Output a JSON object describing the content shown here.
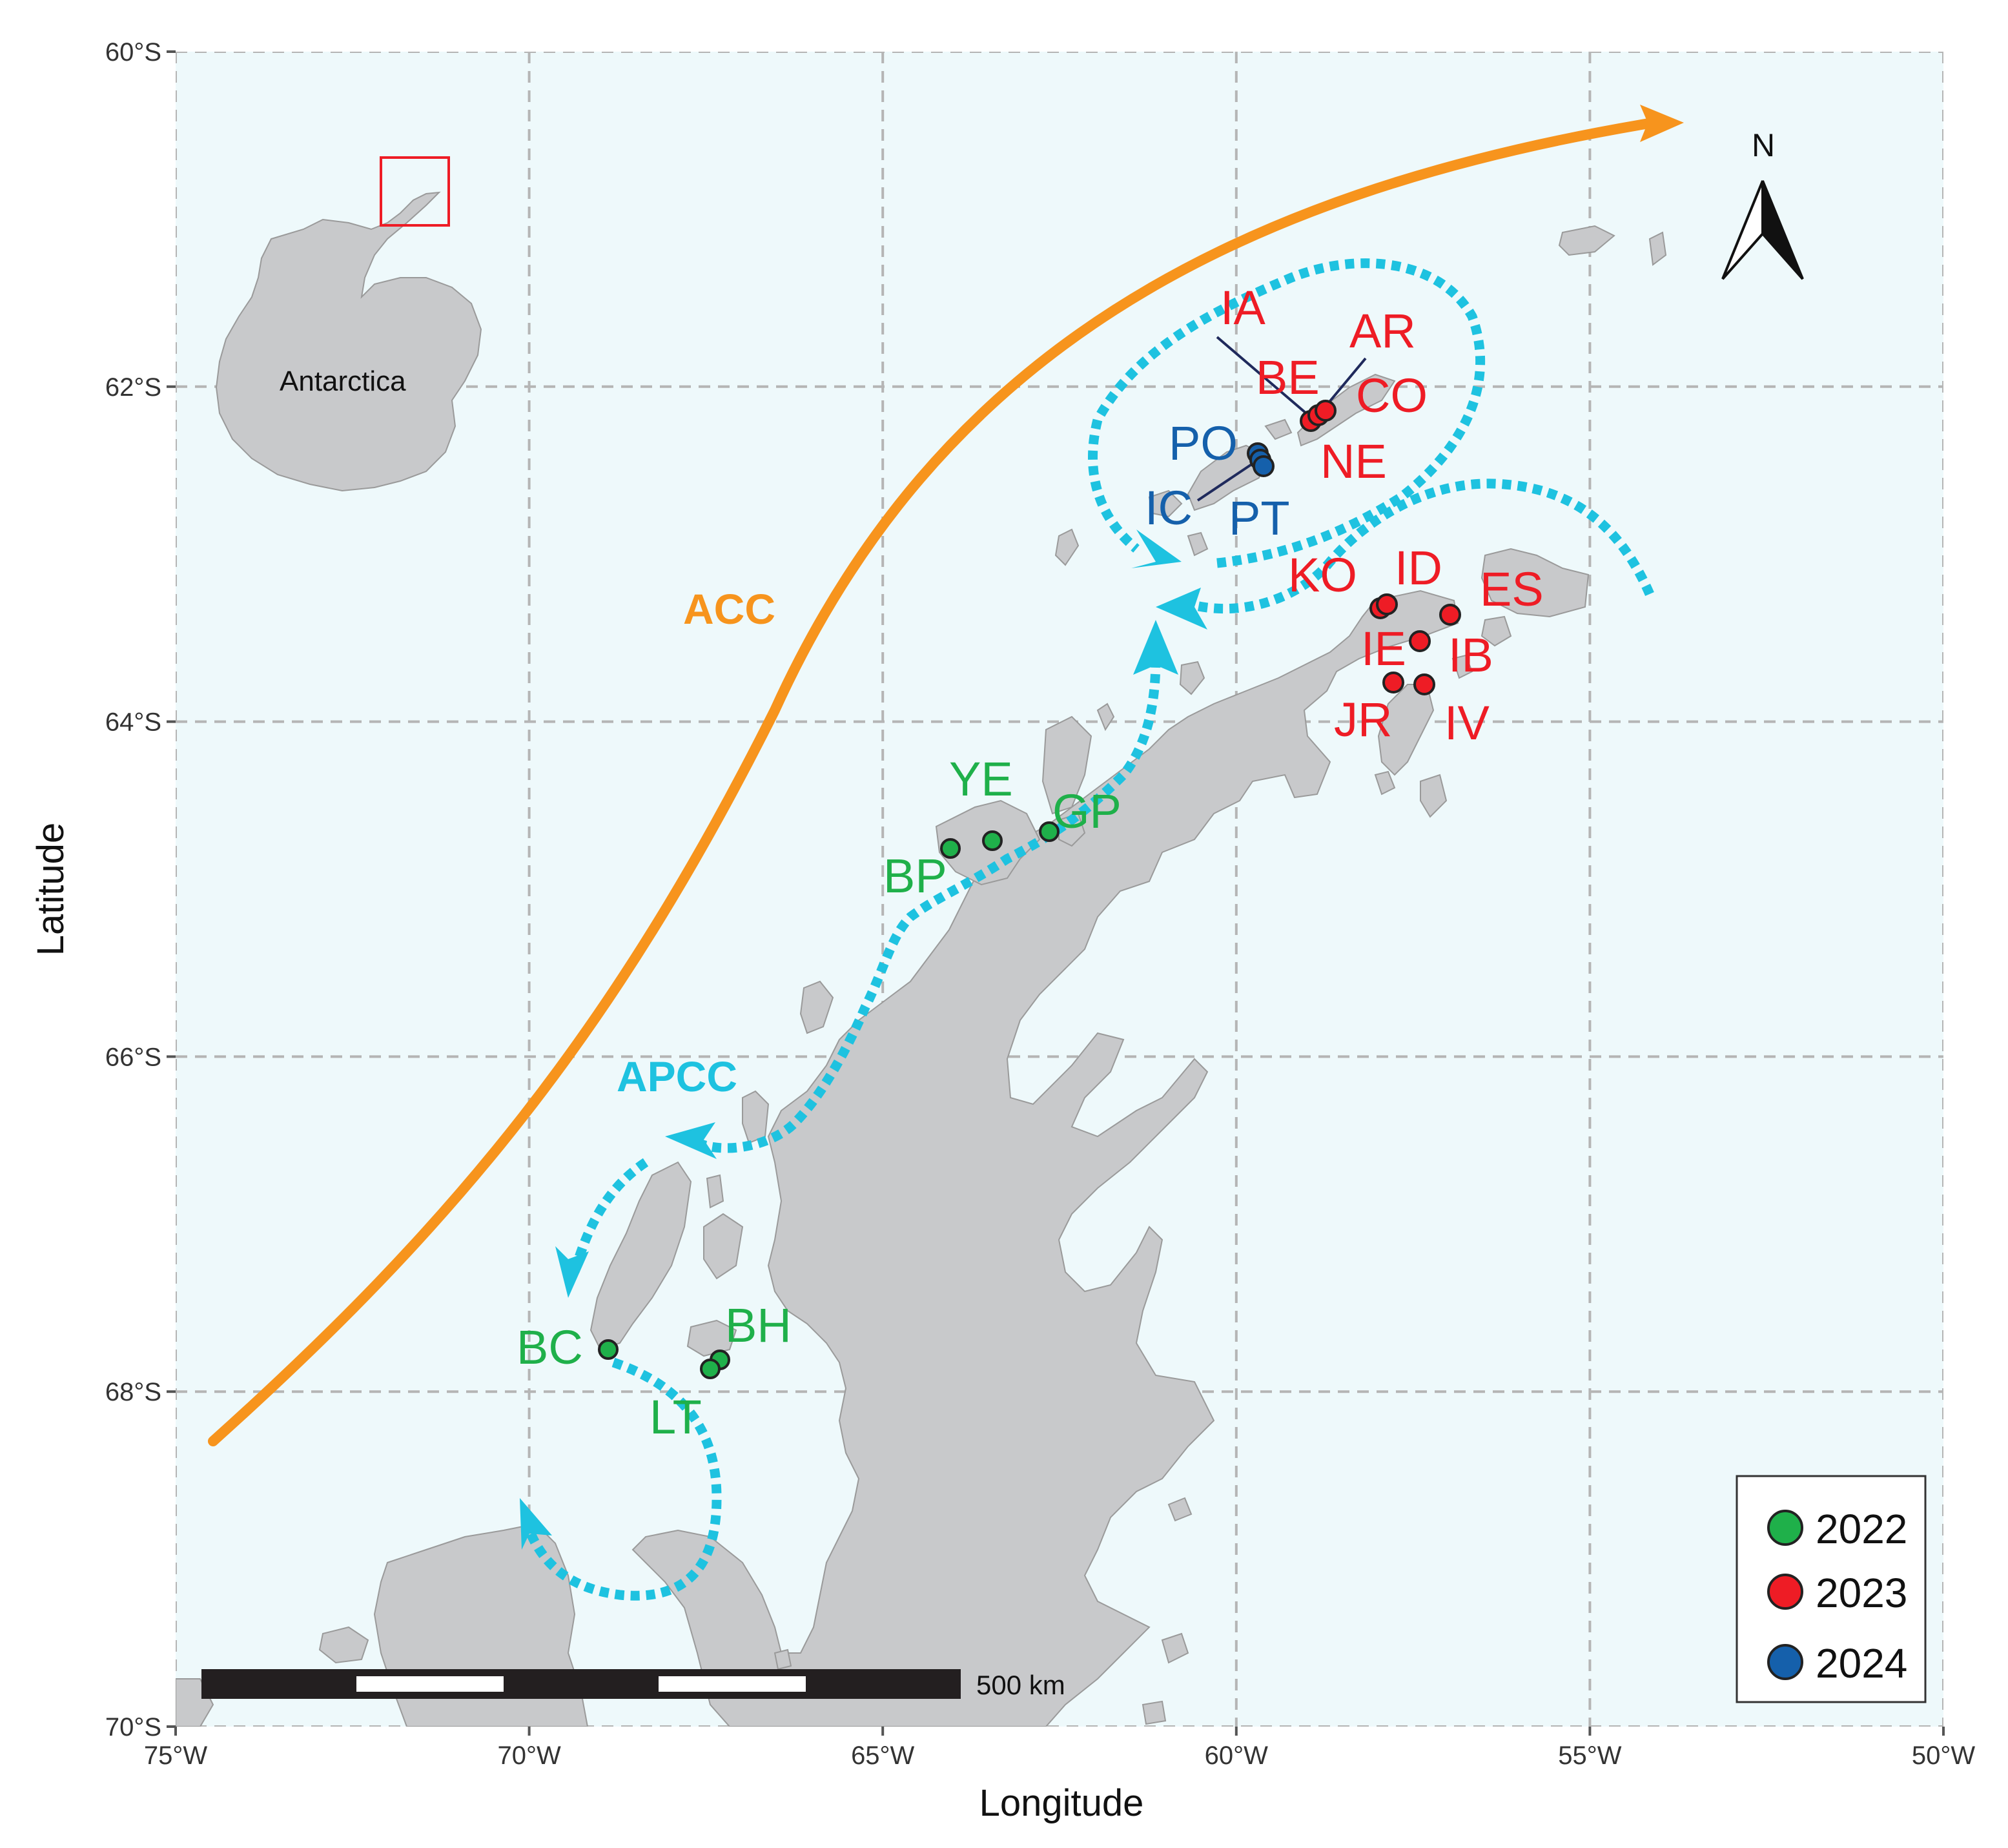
{
  "axes": {
    "x_title": "Longitude",
    "y_title": "Latitude",
    "x_ticks": [
      {
        "lon": -75,
        "label": "75°W"
      },
      {
        "lon": -70,
        "label": "70°W"
      },
      {
        "lon": -65,
        "label": "65°W"
      },
      {
        "lon": -60,
        "label": "60°W"
      },
      {
        "lon": -55,
        "label": "55°W"
      },
      {
        "lon": -50,
        "label": "50°W"
      }
    ],
    "y_ticks": [
      {
        "lat": -60,
        "label": "60°S"
      },
      {
        "lat": -62,
        "label": "62°S"
      },
      {
        "lat": -64,
        "label": "64°S"
      },
      {
        "lat": -66,
        "label": "66°S"
      },
      {
        "lat": -68,
        "label": "68°S"
      },
      {
        "lat": -70,
        "label": "70°S"
      }
    ],
    "lon_range": [
      -75,
      -50
    ],
    "lat_range": [
      -70,
      -60
    ],
    "grid": true
  },
  "currents": {
    "acc": {
      "label": "ACC",
      "color": "#f7941d"
    },
    "apcc": {
      "label": "APCC",
      "color": "#1ec2e0"
    }
  },
  "legend": {
    "entries": [
      {
        "year": "2022",
        "color": "#1fb04a"
      },
      {
        "year": "2023",
        "color": "#ee1c25"
      },
      {
        "year": "2024",
        "color": "#1560ab"
      }
    ]
  },
  "scale_bar": {
    "label": "500 km"
  },
  "north_arrow": {
    "label": "N"
  },
  "inset": {
    "label": "Antarctica"
  },
  "land_color": "#c8c9cb",
  "sea_color": "#eef9fb",
  "sites": [
    {
      "code": "IA",
      "year": "2023"
    },
    {
      "code": "AR",
      "year": "2023"
    },
    {
      "code": "BE",
      "year": "2023"
    },
    {
      "code": "CO",
      "year": "2023"
    },
    {
      "code": "NE",
      "year": "2023"
    },
    {
      "code": "PO",
      "year": "2024"
    },
    {
      "code": "IC",
      "year": "2024"
    },
    {
      "code": "PT",
      "year": "2024"
    },
    {
      "code": "KO",
      "year": "2023"
    },
    {
      "code": "ID",
      "year": "2023"
    },
    {
      "code": "ES",
      "year": "2023"
    },
    {
      "code": "IE",
      "year": "2023"
    },
    {
      "code": "IB",
      "year": "2023"
    },
    {
      "code": "JR",
      "year": "2023"
    },
    {
      "code": "IV",
      "year": "2023"
    },
    {
      "code": "YE",
      "year": "2022"
    },
    {
      "code": "GP",
      "year": "2022"
    },
    {
      "code": "BP",
      "year": "2022"
    },
    {
      "code": "BH",
      "year": "2022"
    },
    {
      "code": "BC",
      "year": "2022"
    },
    {
      "code": "LT",
      "year": "2022"
    }
  ]
}
